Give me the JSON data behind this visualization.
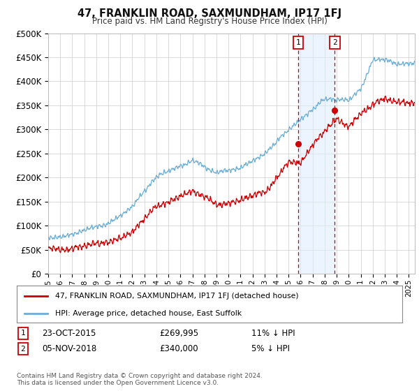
{
  "title": "47, FRANKLIN ROAD, SAXMUNDHAM, IP17 1FJ",
  "subtitle": "Price paid vs. HM Land Registry's House Price Index (HPI)",
  "ylabel_ticks": [
    "£0",
    "£50K",
    "£100K",
    "£150K",
    "£200K",
    "£250K",
    "£300K",
    "£350K",
    "£400K",
    "£450K",
    "£500K"
  ],
  "ytick_values": [
    0,
    50000,
    100000,
    150000,
    200000,
    250000,
    300000,
    350000,
    400000,
    450000,
    500000
  ],
  "xlim_start": 1995.0,
  "xlim_end": 2025.5,
  "ylim_min": 0,
  "ylim_max": 500000,
  "sale1_date": 2015.81,
  "sale1_price": 269995,
  "sale2_date": 2018.84,
  "sale2_price": 340000,
  "shade_start": 2015.81,
  "shade_end": 2018.84,
  "hpi_color": "#6baed6",
  "price_color": "#cc0000",
  "legend_house": "47, FRANKLIN ROAD, SAXMUNDHAM, IP17 1FJ (detached house)",
  "legend_hpi": "HPI: Average price, detached house, East Suffolk",
  "background_color": "#ffffff",
  "grid_color": "#cccccc"
}
